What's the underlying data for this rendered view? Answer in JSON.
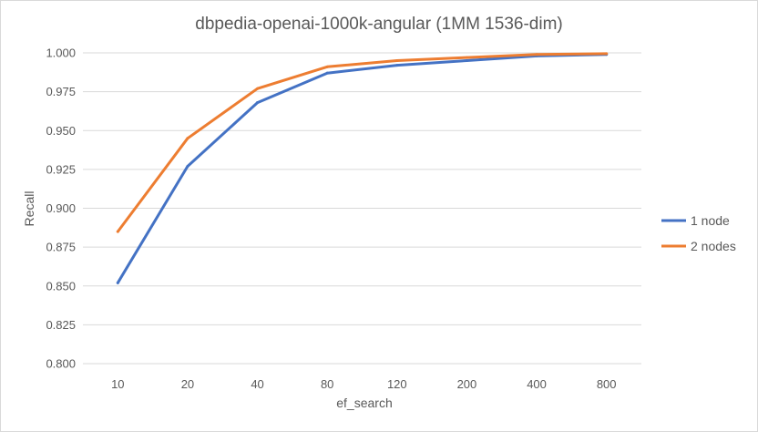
{
  "chart_data": {
    "type": "line",
    "title": "dbpedia-openai-1000k-angular (1MM 1536-dim)",
    "xlabel": "ef_search",
    "ylabel": "Recall",
    "categories": [
      "10",
      "20",
      "40",
      "80",
      "120",
      "200",
      "400",
      "800"
    ],
    "ylim": [
      0.8,
      1.0
    ],
    "yticks": [
      "0.800",
      "0.825",
      "0.850",
      "0.875",
      "0.900",
      "0.925",
      "0.950",
      "0.975",
      "1.000"
    ],
    "grid": true,
    "legend_position": "right",
    "series": [
      {
        "name": "1 node",
        "color": "#4472c4",
        "values": [
          0.852,
          0.927,
          0.968,
          0.987,
          0.992,
          0.995,
          0.998,
          0.999
        ]
      },
      {
        "name": "2 nodes",
        "color": "#ed7d31",
        "values": [
          0.885,
          0.945,
          0.977,
          0.991,
          0.995,
          0.997,
          0.999,
          0.9995
        ]
      }
    ]
  }
}
